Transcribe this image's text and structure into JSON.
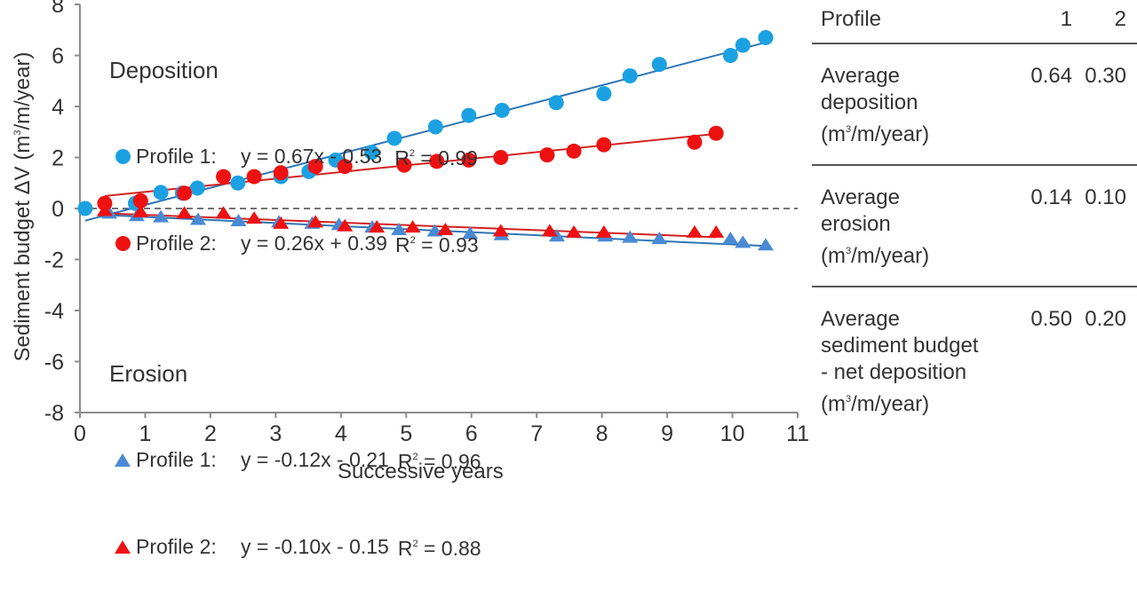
{
  "chart_data": {
    "type": "scatter",
    "title": "",
    "xlabel": "Successive years",
    "ylabel": "Sediment budget ΔV (m³/m/year)",
    "xlim": [
      0,
      11
    ],
    "ylim": [
      -8,
      8
    ],
    "x_ticks": [
      "0",
      "1",
      "2",
      "3",
      "4",
      "5",
      "6",
      "7",
      "8",
      "9",
      "10",
      "11"
    ],
    "y_ticks": [
      "-8",
      "-6",
      "-4",
      "-2",
      "0",
      "2",
      "4",
      "6",
      "8"
    ],
    "x_tick_values": [
      0,
      1,
      2,
      3,
      4,
      5,
      6,
      7,
      8,
      9,
      10,
      11
    ],
    "y_tick_values": [
      -8,
      -6,
      -4,
      -2,
      0,
      2,
      4,
      6,
      8
    ],
    "zero_line": "dashed",
    "grid": false,
    "legend_groups": [
      {
        "title": "Deposition",
        "placement": "top-left"
      },
      {
        "title": "Erosion",
        "placement": "bottom-left"
      }
    ],
    "series": [
      {
        "name": "Deposition Profile 1",
        "group": "Deposition",
        "label": "Profile 1:",
        "marker": "circle",
        "color": "#1ba1e2",
        "line_color": "#2e75b6",
        "equation": "y = 0.67x - 0.53",
        "r2_label": "R",
        "r2_value": "= 0.99",
        "slope": 0.67,
        "intercept": -0.53,
        "fit_range": [
          0.08,
          10.51
        ],
        "x": [
          0.08,
          0.85,
          1.24,
          1.57,
          1.8,
          2.42,
          3.08,
          3.51,
          3.92,
          4.47,
          4.82,
          5.45,
          5.96,
          6.47,
          7.3,
          8.03,
          8.43,
          8.88,
          9.97,
          10.16,
          10.51
        ],
        "y": [
          0.0,
          0.2,
          0.63,
          0.6,
          0.8,
          1.0,
          1.25,
          1.45,
          1.9,
          2.2,
          2.75,
          3.2,
          3.65,
          3.85,
          4.15,
          4.5,
          5.2,
          5.65,
          6.0,
          6.4,
          6.7
        ]
      },
      {
        "name": "Deposition Profile 2",
        "group": "Deposition",
        "label": "Profile 2:",
        "marker": "circle",
        "color": "#ee1111",
        "line_color": "#d42020",
        "equation": "y = 0.26x + 0.39",
        "r2_label": "R",
        "r2_value": "= 0.93",
        "slope": 0.26,
        "intercept": 0.39,
        "fit_range": [
          0.38,
          9.75
        ],
        "x": [
          0.38,
          0.93,
          1.6,
          2.2,
          2.67,
          3.08,
          3.61,
          4.06,
          4.97,
          5.47,
          5.96,
          6.45,
          7.16,
          7.57,
          8.03,
          9.42,
          9.75
        ],
        "y": [
          0.2,
          0.3,
          0.6,
          1.25,
          1.25,
          1.4,
          1.65,
          1.65,
          1.7,
          1.85,
          1.9,
          2.0,
          2.1,
          2.25,
          2.5,
          2.6,
          2.95
        ]
      },
      {
        "name": "Erosion Profile 1",
        "group": "Erosion",
        "label": "Profile 1:",
        "marker": "triangle",
        "color": "#4a8ad4",
        "line_color": "#2e75b6",
        "equation": "y = -0.12x - 0.21",
        "r2_label": "R",
        "r2_value": "= 0.96",
        "slope": -0.12,
        "intercept": -0.21,
        "fit_range": [
          0.4,
          10.51
        ],
        "x": [
          0.45,
          0.87,
          1.24,
          1.81,
          2.43,
          3.05,
          3.56,
          3.97,
          4.48,
          4.89,
          5.44,
          5.98,
          6.46,
          7.31,
          8.05,
          8.43,
          8.88,
          9.97,
          10.16,
          10.51
        ],
        "y": [
          -0.2,
          -0.3,
          -0.35,
          -0.45,
          -0.5,
          -0.55,
          -0.6,
          -0.65,
          -0.75,
          -0.85,
          -0.9,
          -1.0,
          -1.05,
          -1.1,
          -1.1,
          -1.15,
          -1.2,
          -1.2,
          -1.35,
          -1.45
        ]
      },
      {
        "name": "Erosion Profile 2",
        "group": "Erosion",
        "label": "Profile 2:",
        "marker": "triangle",
        "color": "#ee1111",
        "line_color": "#d42020",
        "equation": "y = -0.10x - 0.15",
        "r2_label": "R",
        "r2_value": "= 0.88",
        "slope": -0.1,
        "intercept": -0.15,
        "fit_range": [
          0.38,
          9.75
        ],
        "x": [
          0.38,
          0.93,
          1.6,
          2.2,
          2.67,
          3.08,
          3.61,
          4.06,
          4.55,
          5.1,
          5.6,
          6.45,
          7.2,
          7.57,
          8.03,
          9.42,
          9.75
        ],
        "y": [
          -0.1,
          -0.15,
          -0.2,
          -0.2,
          -0.4,
          -0.6,
          -0.55,
          -0.7,
          -0.75,
          -0.75,
          -0.85,
          -0.9,
          -0.9,
          -0.95,
          -0.95,
          -0.95,
          -0.95
        ]
      }
    ]
  },
  "legend": {
    "deposition_title": "Deposition",
    "erosion_title": "Erosion",
    "r_symbol": "R",
    "sup2": "2"
  },
  "table": {
    "header": {
      "label": "Profile",
      "col1": "1",
      "col2": "2"
    },
    "rows": [
      {
        "lines": [
          "Average",
          "deposition"
        ],
        "unit_prefix": "(m",
        "unit_sup": "3",
        "unit_suffix": "/m/year)",
        "v1": "0.64",
        "v2": "0.30"
      },
      {
        "lines": [
          "Average",
          "erosion"
        ],
        "unit_prefix": "(m",
        "unit_sup": "3",
        "unit_suffix": "/m/year)",
        "v1": "0.14",
        "v2": "0.10"
      },
      {
        "lines": [
          "Average",
          "sediment budget",
          "- net deposition"
        ],
        "unit_prefix": "(m",
        "unit_sup": "3",
        "unit_suffix": "/m/year)",
        "v1": "0.50",
        "v2": "0.20"
      }
    ]
  },
  "axis_labels": {
    "y_prefix": "Sediment budget ΔV (m",
    "y_sup": "3",
    "y_suffix": "/m/year)",
    "x": "Successive years"
  }
}
